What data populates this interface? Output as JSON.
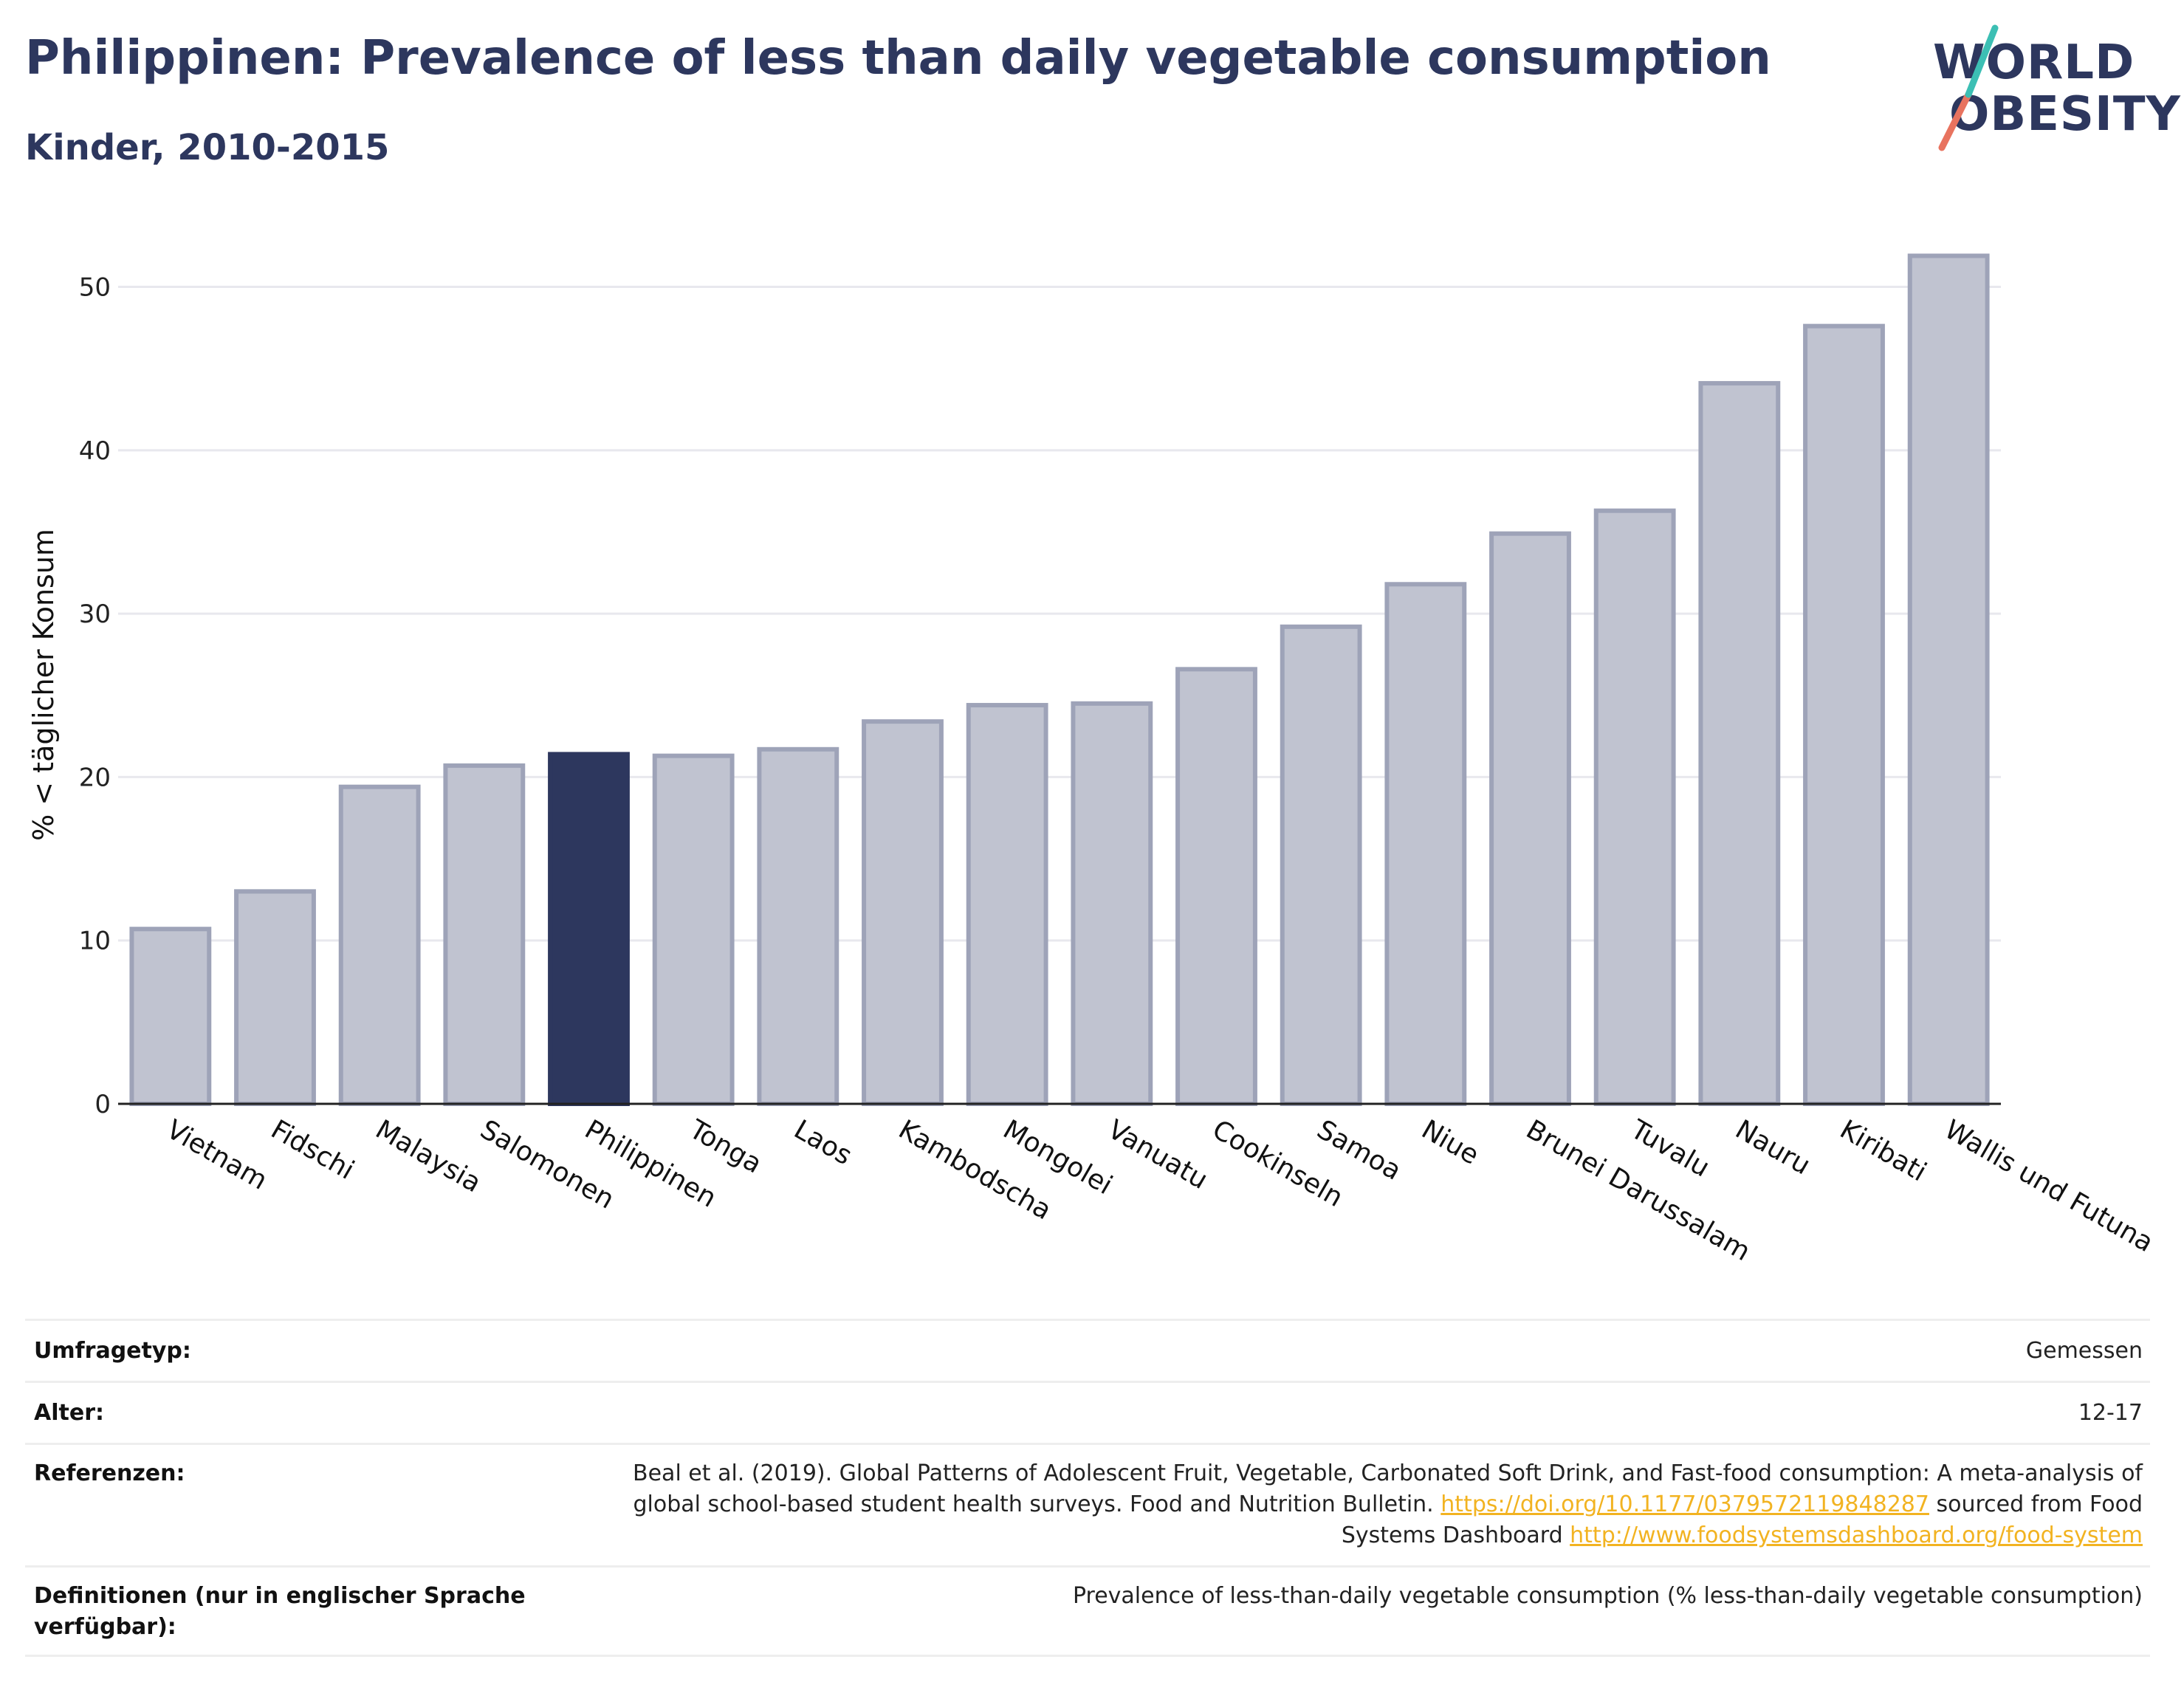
{
  "title": "Philippinen: Prevalence of less than daily vegetable consumption",
  "subtitle": "Kinder, 2010-2015",
  "logo": {
    "line1": "WORLD",
    "line2": "OBESITY"
  },
  "colors": {
    "highlight": "#2d375e",
    "bar_fill": "#c0c3d0",
    "bar_stroke": "#9ea3b8",
    "grid": "#e8e8ee",
    "axis": "#222222",
    "link": "#f2b321",
    "logo_teal": "#3cbfb4",
    "logo_coral": "#e8735f"
  },
  "chart_data": {
    "type": "bar",
    "title": "Philippinen: Prevalence of less than daily vegetable consumption",
    "subtitle": "Kinder, 2010-2015",
    "xlabel": "",
    "ylabel": "% < täglicher Konsum",
    "ylim": [
      0,
      54
    ],
    "yticks": [
      0,
      10,
      20,
      30,
      40,
      50
    ],
    "grid": true,
    "highlight_category": "Philippinen",
    "categories": [
      "Vietnam",
      "Fidschi",
      "Malaysia",
      "Salomonen",
      "Philippinen",
      "Tonga",
      "Laos",
      "Kambodscha",
      "Mongolei",
      "Vanuatu",
      "Cookinseln",
      "Samoa",
      "Niue",
      "Brunei Darussalam",
      "Tuvalu",
      "Nauru",
      "Kiribati",
      "Wallis und Futuna"
    ],
    "values": [
      10.7,
      13.0,
      19.4,
      20.7,
      21.4,
      21.3,
      21.7,
      23.4,
      24.4,
      24.5,
      26.6,
      29.2,
      31.8,
      34.9,
      36.3,
      44.1,
      47.6,
      51.9
    ]
  },
  "table": {
    "survey_type": {
      "label": "Umfragetyp:",
      "value": "Gemessen"
    },
    "age": {
      "label": "Alter:",
      "value": "12-17"
    },
    "references": {
      "label": "Referenzen:",
      "text1": "Beal et al. (2019). Global Patterns of Adolescent Fruit, Vegetable, Carbonated Soft Drink, and Fast-food consumption: A meta-analysis of global school-based student health surveys. Food and Nutrition Bulletin.",
      "link1": "https://doi.org/10.1177/0379572119848287",
      "text2": "sourced from Food Systems Dashboard",
      "link2": "http://www.foodsystemsdashboard.org/food-system"
    },
    "definitions": {
      "label": "Definitionen (nur in englischer Sprache verfügbar):",
      "value": "Prevalence of less-than-daily vegetable consumption (% less-than-daily vegetable consumption)"
    }
  }
}
